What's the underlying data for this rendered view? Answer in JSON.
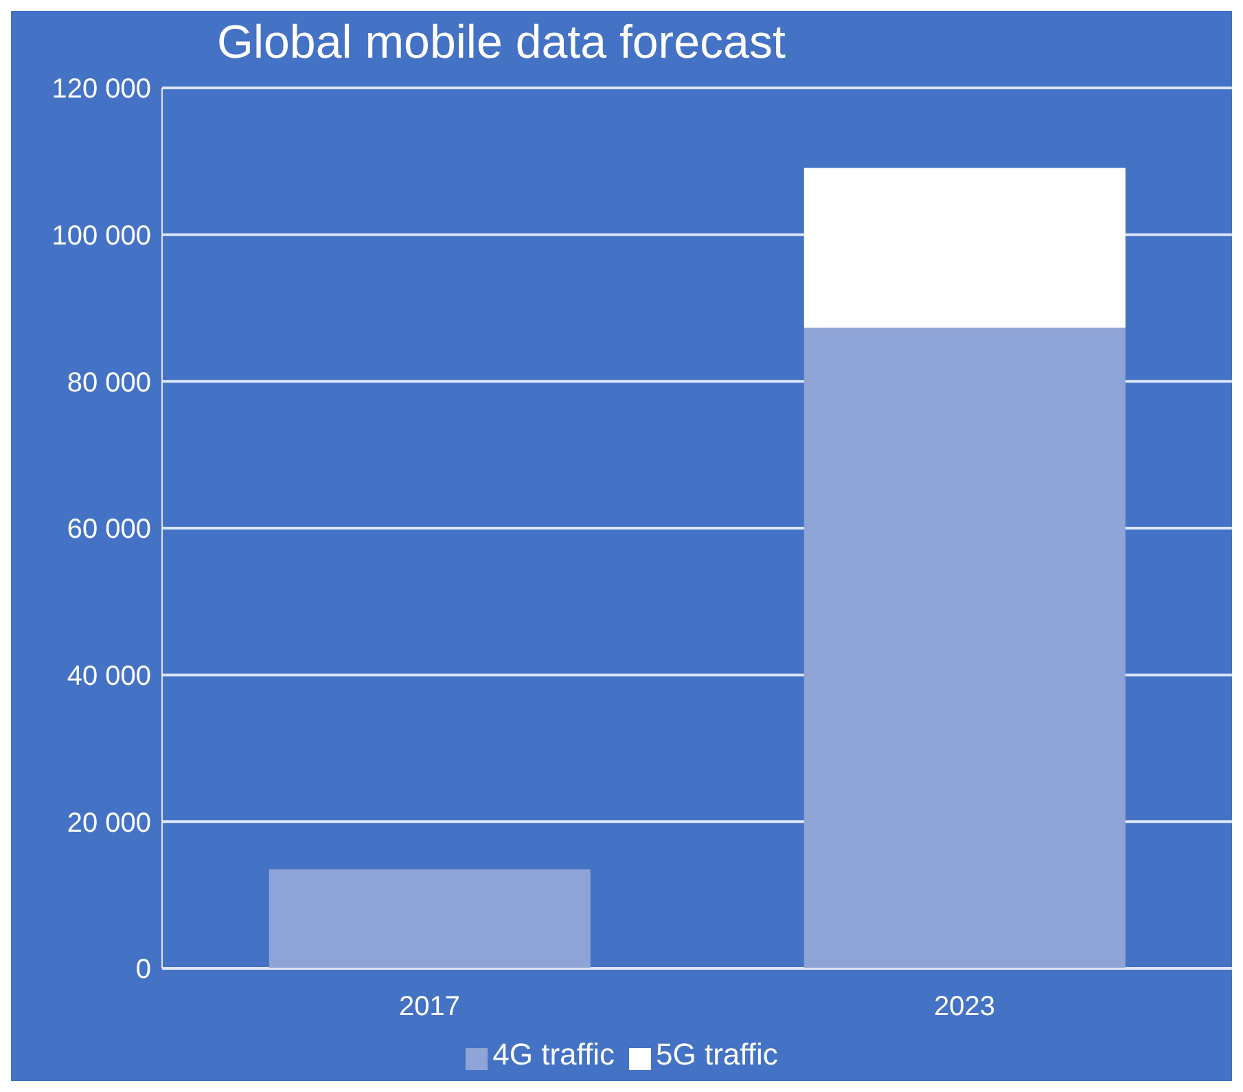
{
  "chart_data": {
    "type": "bar",
    "title": "Global mobile data forecast",
    "categories": [
      "2017",
      "2023"
    ],
    "stacked": true,
    "series": [
      {
        "name": "4G traffic",
        "color": "#8fa4d6",
        "values": [
          13500,
          87300
        ]
      },
      {
        "name": "5G traffic",
        "color": "#ffffff",
        "values": [
          null,
          21800
        ]
      }
    ],
    "ylim": [
      0,
      120000
    ],
    "yticks": [
      0,
      {
        "value": 20000,
        "label": "20 000"
      },
      {
        "value": 40000,
        "label": "40 000"
      },
      {
        "value": 60000,
        "label": "60 000"
      },
      {
        "value": 80000,
        "label": "80 000"
      },
      {
        "value": 100000,
        "label": "100 000"
      },
      {
        "value": 120000,
        "label": "120 000"
      }
    ],
    "grid": "y",
    "legend": "bottom"
  }
}
